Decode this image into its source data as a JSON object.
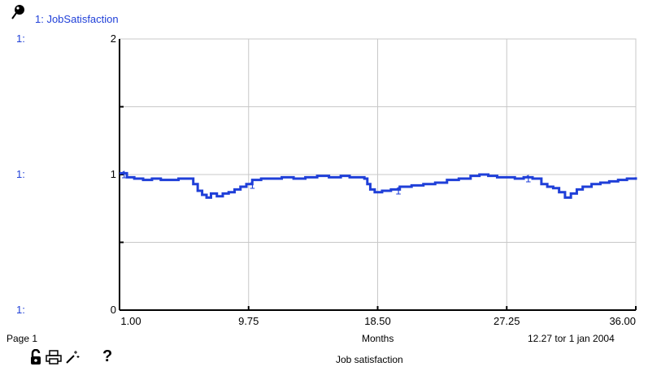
{
  "legend": {
    "marker": "1",
    "name": "1: JobSatisfaction",
    "icon": "pin-icon"
  },
  "footer": {
    "page": "Page 1",
    "xlabel": "Months",
    "readout": "12.27   tor 1 jan 2004",
    "caption": "Job satisfaction"
  },
  "toolbar": {
    "lock_icon": "lock-icon",
    "print_icon": "printer-icon",
    "wand_icon": "magic-wand-icon",
    "help_icon": "help-icon",
    "help_glyph": "?"
  },
  "chart_data": {
    "type": "line",
    "title": "",
    "xlabel": "Months",
    "ylabel": "",
    "xlim": [
      1,
      36
    ],
    "ylim": [
      0,
      2
    ],
    "grid": true,
    "x_ticks": [
      "1.00",
      "9.75",
      "18.50",
      "27.25",
      "36.00"
    ],
    "x_tick_values": [
      1,
      9.75,
      18.5,
      27.25,
      36
    ],
    "y_ticks": [
      {
        "value": 2,
        "axis_label": "1:",
        "tick_label": "2"
      },
      {
        "value": 1,
        "axis_label": "1:",
        "tick_label": "1"
      },
      {
        "value": 0,
        "axis_label": "1:",
        "tick_label": "0"
      }
    ],
    "series": [
      {
        "name": "1: JobSatisfaction",
        "marker": "1",
        "color": "#1f3fd8",
        "marker_x": [
          1.3,
          10.0,
          19.9,
          28.7
        ],
        "x": [
          1.0,
          1.5,
          2.0,
          2.6,
          3.2,
          3.8,
          4.4,
          5.0,
          5.6,
          6.0,
          6.3,
          6.6,
          6.9,
          7.2,
          7.6,
          8.0,
          8.4,
          8.8,
          9.2,
          9.6,
          10.0,
          10.6,
          11.2,
          12.0,
          12.8,
          13.6,
          14.4,
          15.2,
          16.0,
          16.6,
          17.2,
          17.6,
          17.8,
          18.0,
          18.3,
          18.8,
          19.4,
          20.0,
          20.8,
          21.6,
          22.4,
          23.2,
          24.0,
          24.8,
          25.4,
          26.0,
          26.6,
          27.2,
          27.8,
          28.4,
          29.0,
          29.6,
          30.0,
          30.4,
          30.8,
          31.2,
          31.6,
          32.0,
          32.4,
          33.0,
          33.6,
          34.2,
          34.8,
          35.4,
          36.0
        ],
        "y": [
          1.01,
          0.98,
          0.97,
          0.96,
          0.97,
          0.96,
          0.96,
          0.97,
          0.97,
          0.93,
          0.88,
          0.85,
          0.83,
          0.86,
          0.84,
          0.86,
          0.87,
          0.89,
          0.91,
          0.93,
          0.96,
          0.97,
          0.97,
          0.98,
          0.97,
          0.98,
          0.99,
          0.98,
          0.99,
          0.98,
          0.98,
          0.97,
          0.93,
          0.89,
          0.87,
          0.88,
          0.89,
          0.91,
          0.92,
          0.93,
          0.94,
          0.96,
          0.97,
          0.99,
          1.0,
          0.99,
          0.98,
          0.98,
          0.97,
          0.98,
          0.97,
          0.93,
          0.91,
          0.9,
          0.87,
          0.83,
          0.86,
          0.89,
          0.91,
          0.93,
          0.94,
          0.95,
          0.96,
          0.97,
          0.98
        ]
      }
    ]
  }
}
